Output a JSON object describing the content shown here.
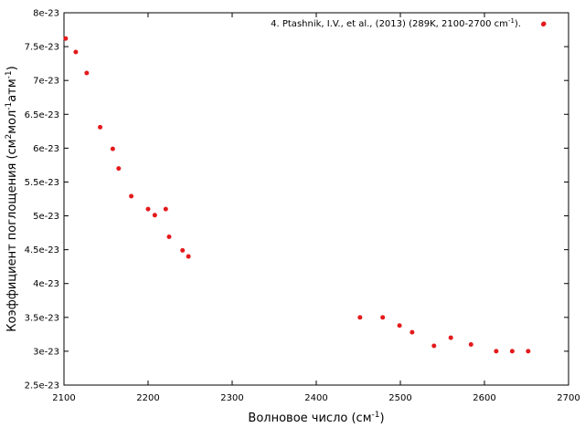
{
  "chart_data": {
    "type": "scatter",
    "xlabel_main": "Волновое число (см",
    "xlabel_sup": "-1",
    "xlabel_end": ")",
    "ylabel_main": "Коэффициент поглощения (см",
    "ylabel_sup1": "2",
    "ylabel_mid": "мол",
    "ylabel_sup2": "-1",
    "ylabel_mid2": "атм",
    "ylabel_sup3": "-1",
    "ylabel_end": ")",
    "xlim": [
      2100,
      2700
    ],
    "ylim": [
      2.5e-23,
      8e-23
    ],
    "x_ticks": [
      2100,
      2200,
      2300,
      2400,
      2500,
      2600,
      2700
    ],
    "x_tick_labels": [
      "2100",
      "2200",
      "2300",
      "2400",
      "2500",
      "2600",
      "2700"
    ],
    "y_ticks": [
      2.5e-23,
      3e-23,
      3.5e-23,
      4e-23,
      4.5e-23,
      5e-23,
      5.5e-23,
      6e-23,
      6.5e-23,
      7e-23,
      7.5e-23,
      8e-23
    ],
    "y_tick_labels": [
      "2.5e-23",
      "3e-23",
      "3.5e-23",
      "4e-23",
      "4.5e-23",
      "5e-23",
      "5.5e-23",
      "6e-23",
      "6.5e-23",
      "7e-23",
      "7.5e-23",
      "8e-23"
    ],
    "grid": false,
    "legend_position": "top-right",
    "series": [
      {
        "name": "4. Ptashnik, I.V., et al., (2013) (289K, 2100-2700 cm-1).",
        "legend_main": "4. Ptashnik, I.V., et al., (2013) (289K, 2100-2700 cm",
        "legend_sup": "-1",
        "legend_end": ").",
        "color": "#e41a1c",
        "points": [
          [
            2102,
            7.62e-23
          ],
          [
            2114,
            7.42e-23
          ],
          [
            2127,
            7.11e-23
          ],
          [
            2143,
            6.31e-23
          ],
          [
            2158,
            5.99e-23
          ],
          [
            2165,
            5.7e-23
          ],
          [
            2180,
            5.29e-23
          ],
          [
            2200,
            5.1e-23
          ],
          [
            2208,
            5.01e-23
          ],
          [
            2221,
            5.1e-23
          ],
          [
            2225,
            4.69e-23
          ],
          [
            2241,
            4.49e-23
          ],
          [
            2248,
            4.4e-23
          ],
          [
            2452,
            3.5e-23
          ],
          [
            2479,
            3.5e-23
          ],
          [
            2499,
            3.38e-23
          ],
          [
            2514,
            3.28e-23
          ],
          [
            2540,
            3.08e-23
          ],
          [
            2560,
            3.2e-23
          ],
          [
            2584,
            3.1e-23
          ],
          [
            2614,
            3e-23
          ],
          [
            2633,
            3e-23
          ],
          [
            2652,
            3e-23
          ],
          [
            2670,
            7.83e-23
          ]
        ]
      }
    ]
  }
}
